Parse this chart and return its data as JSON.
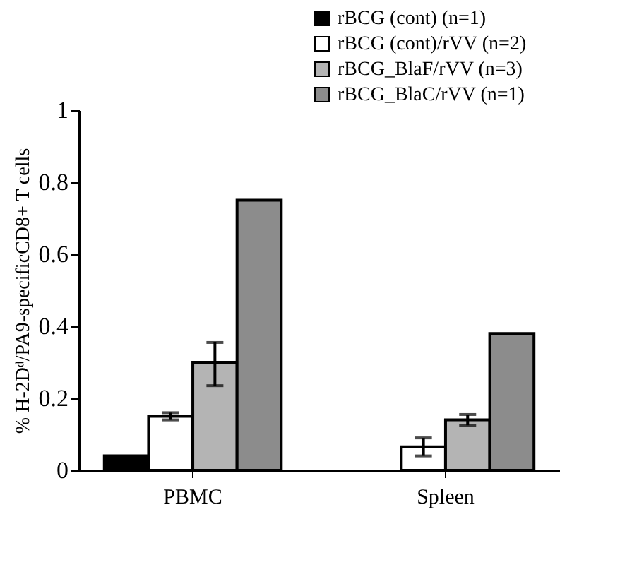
{
  "chart_data": {
    "type": "bar",
    "ylabel": "% H-2Dᵈ/PA9-specificCD8+ T cells",
    "categories": [
      "PBMC",
      "Spleen"
    ],
    "ylim": [
      0,
      1
    ],
    "yticks": [
      0,
      0.2,
      0.4,
      0.6,
      0.8,
      1
    ],
    "legend": "top right",
    "series": [
      {
        "name": "rBCG (cont) (n=1)",
        "color": "#000000",
        "values": [
          0.04,
          null
        ]
      },
      {
        "name": "rBCG (cont)/rVV (n=2)",
        "color": "#ffffff",
        "values": [
          0.15,
          0.065
        ],
        "errors": [
          0.01,
          0.025
        ]
      },
      {
        "name": "rBCG_BlaF/rVV (n=3)",
        "color": "#b4b4b4",
        "values": [
          0.3,
          0.14
        ],
        "errors": [
          [
            0.235,
            0.355
          ],
          0.015
        ]
      },
      {
        "name": "rBCG_BlaC/rVV (n=1)",
        "color": "#8c8c8c",
        "values": [
          0.75,
          0.38
        ]
      }
    ]
  }
}
